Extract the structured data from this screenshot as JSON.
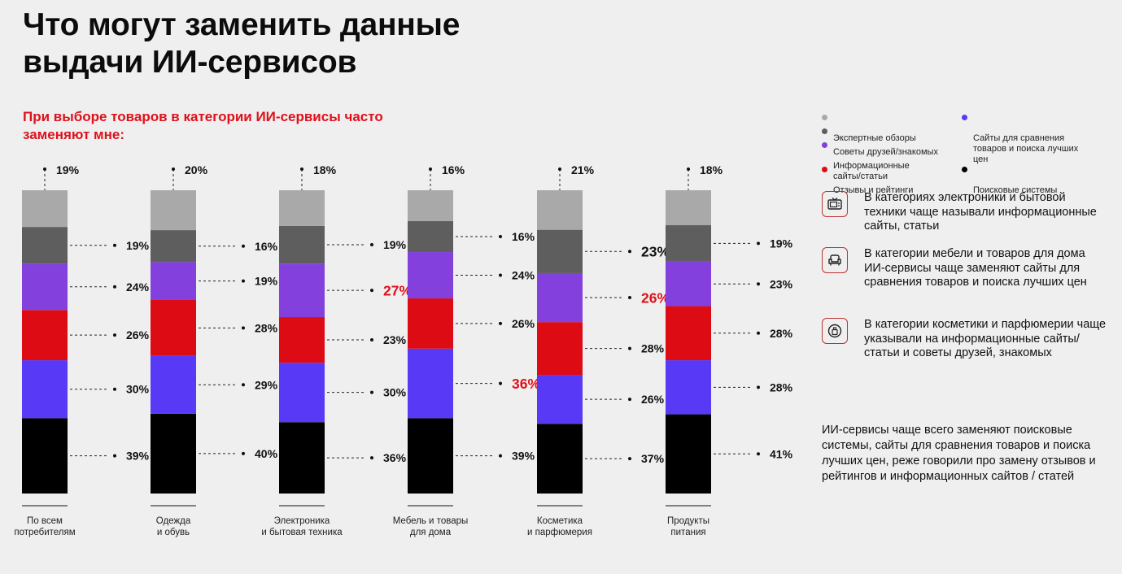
{
  "page": {
    "title": "Что могут заменить данные\nвыдачи ИИ-сервисов",
    "subtitle": "При выборе товаров в категории ИИ-сервисы часто\nзаменяют мне:"
  },
  "colors": {
    "expert_reviews": "#a9a9a9",
    "friends_advice": "#5e5e5e",
    "info_sites": "#8340dd",
    "reviews_ratings": "#dd0c14",
    "comparison_sites": "#583af6",
    "search_engines": "#000000",
    "highlight": "#e0101a"
  },
  "chart_data": {
    "type": "bar",
    "stacked": true,
    "categories": [
      "По всем\nпотребителям",
      "Одежда\nи обувь",
      "Электроника\nи бытовая техника",
      "Мебель и товары\nдля дома",
      "Косметика\nи парфюмерия",
      "Продукты\nпитания"
    ],
    "series": [
      {
        "name": "Поисковые системы",
        "color": "#000000",
        "values": [
          39,
          40,
          36,
          39,
          37,
          41
        ]
      },
      {
        "name": "Сайты для сравнения товаров и поиска лучших цен",
        "color": "#583af6",
        "values": [
          30,
          29,
          30,
          36,
          26,
          28
        ]
      },
      {
        "name": "Отзывы и рейтинги",
        "color": "#dd0c14",
        "values": [
          26,
          28,
          23,
          26,
          28,
          28
        ]
      },
      {
        "name": "Информационные сайты/статьи",
        "color": "#8340dd",
        "values": [
          24,
          19,
          27,
          24,
          26,
          23
        ]
      },
      {
        "name": "Советы друзей/знакомых",
        "color": "#5e5e5e",
        "values": [
          19,
          16,
          19,
          16,
          23,
          19
        ]
      },
      {
        "name": "Экспертные обзоры",
        "color": "#a9a9a9",
        "values": [
          19,
          20,
          18,
          16,
          21,
          18
        ]
      }
    ],
    "value_labels": [
      [
        "39%",
        "30%",
        "26%",
        "24%",
        "19%",
        "19%"
      ],
      [
        "40%",
        "29%",
        "28%",
        "19%",
        "16%",
        "20%"
      ],
      [
        "36%",
        "30%",
        "23%",
        "27%",
        "19%",
        "18%"
      ],
      [
        "39%",
        "36%",
        "26%",
        "24%",
        "16%",
        "16%"
      ],
      [
        "37%",
        "26%",
        "28%",
        "26%",
        "23%",
        "21%"
      ],
      [
        "41%",
        "28%",
        "28%",
        "23%",
        "19%",
        "18%"
      ]
    ],
    "highlighted": [
      {
        "category": 2,
        "series": 3
      },
      {
        "category": 3,
        "series": 1
      },
      {
        "category": 4,
        "series": 3
      }
    ],
    "emphasized": [
      {
        "category": 4,
        "series": 4
      }
    ]
  },
  "legend": {
    "items": [
      {
        "label": "Экспертные обзоры",
        "color": "#a9a9a9"
      },
      {
        "label": "Советы друзей/знакомых",
        "color": "#5e5e5e"
      },
      {
        "label": "Информационные\nсайты/статьи",
        "color": "#8340dd"
      },
      {
        "label": "Отзывы и рейтинги",
        "color": "#dd0c14"
      },
      {
        "label": "Сайты для сравнения\nтоваров и поиска лучших\nцен",
        "color": "#583af6"
      },
      {
        "label": "Поисковые системы",
        "color": "#000000"
      }
    ]
  },
  "notes": [
    {
      "icon": "tv-icon",
      "text": "В категориях электроники и бытовой техники чаще называли информационные сайты, статьи"
    },
    {
      "icon": "armchair-icon",
      "text": "В категории мебели и товаров для дома ИИ-сервисы чаще заменяют сайты для сравнения товаров и поиска лучших цен"
    },
    {
      "icon": "perfume-icon",
      "text": "В категории косметики и парфюмерии чаще указывали на информационные сайты/статьи и советы друзей, знакомых"
    }
  ],
  "summary": "ИИ-сервисы чаще всего заменяют поисковые системы, сайты для сравнения товаров и поиска лучших цен, реже говорили про замену отзывов и рейтингов и информационных сайтов / статей"
}
